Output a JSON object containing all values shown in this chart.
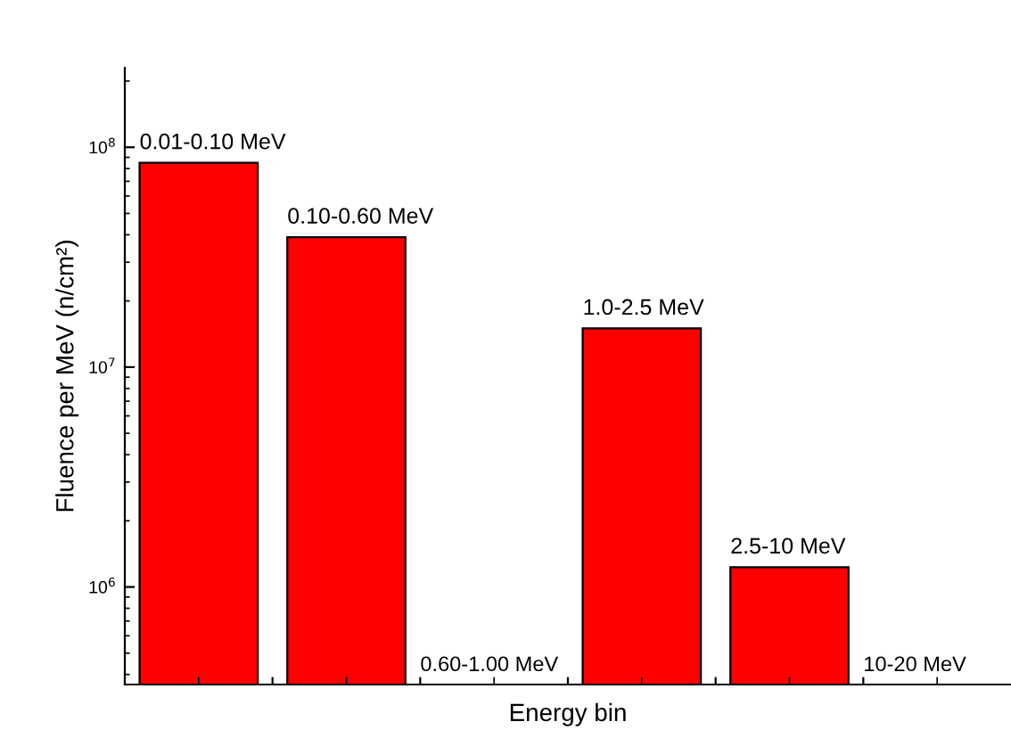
{
  "chart_data": {
    "type": "bar",
    "xlabel": "Energy bin",
    "ylabel": "Fluence per MeV (n/cm²)",
    "categories": [
      "0.01-0.10 MeV",
      "0.10-0.60 MeV",
      "0.60-1.00 MeV",
      "1.0-2.5 MeV",
      "2.5-10 MeV",
      "10-20 MeV"
    ],
    "values": [
      85000000,
      39000000,
      null,
      15000000,
      1230000,
      null
    ],
    "color": "#ff0000",
    "log": "y",
    "ylim": [
      360000,
      230000000
    ],
    "yticks": [
      {
        "value": 1000000,
        "label": "10$^{6}$"
      },
      {
        "value": 10000000,
        "label": "10$^{7}$"
      },
      {
        "value": 100000000,
        "label": "10$^{8}$"
      }
    ],
    "grid": false,
    "legend": false
  }
}
